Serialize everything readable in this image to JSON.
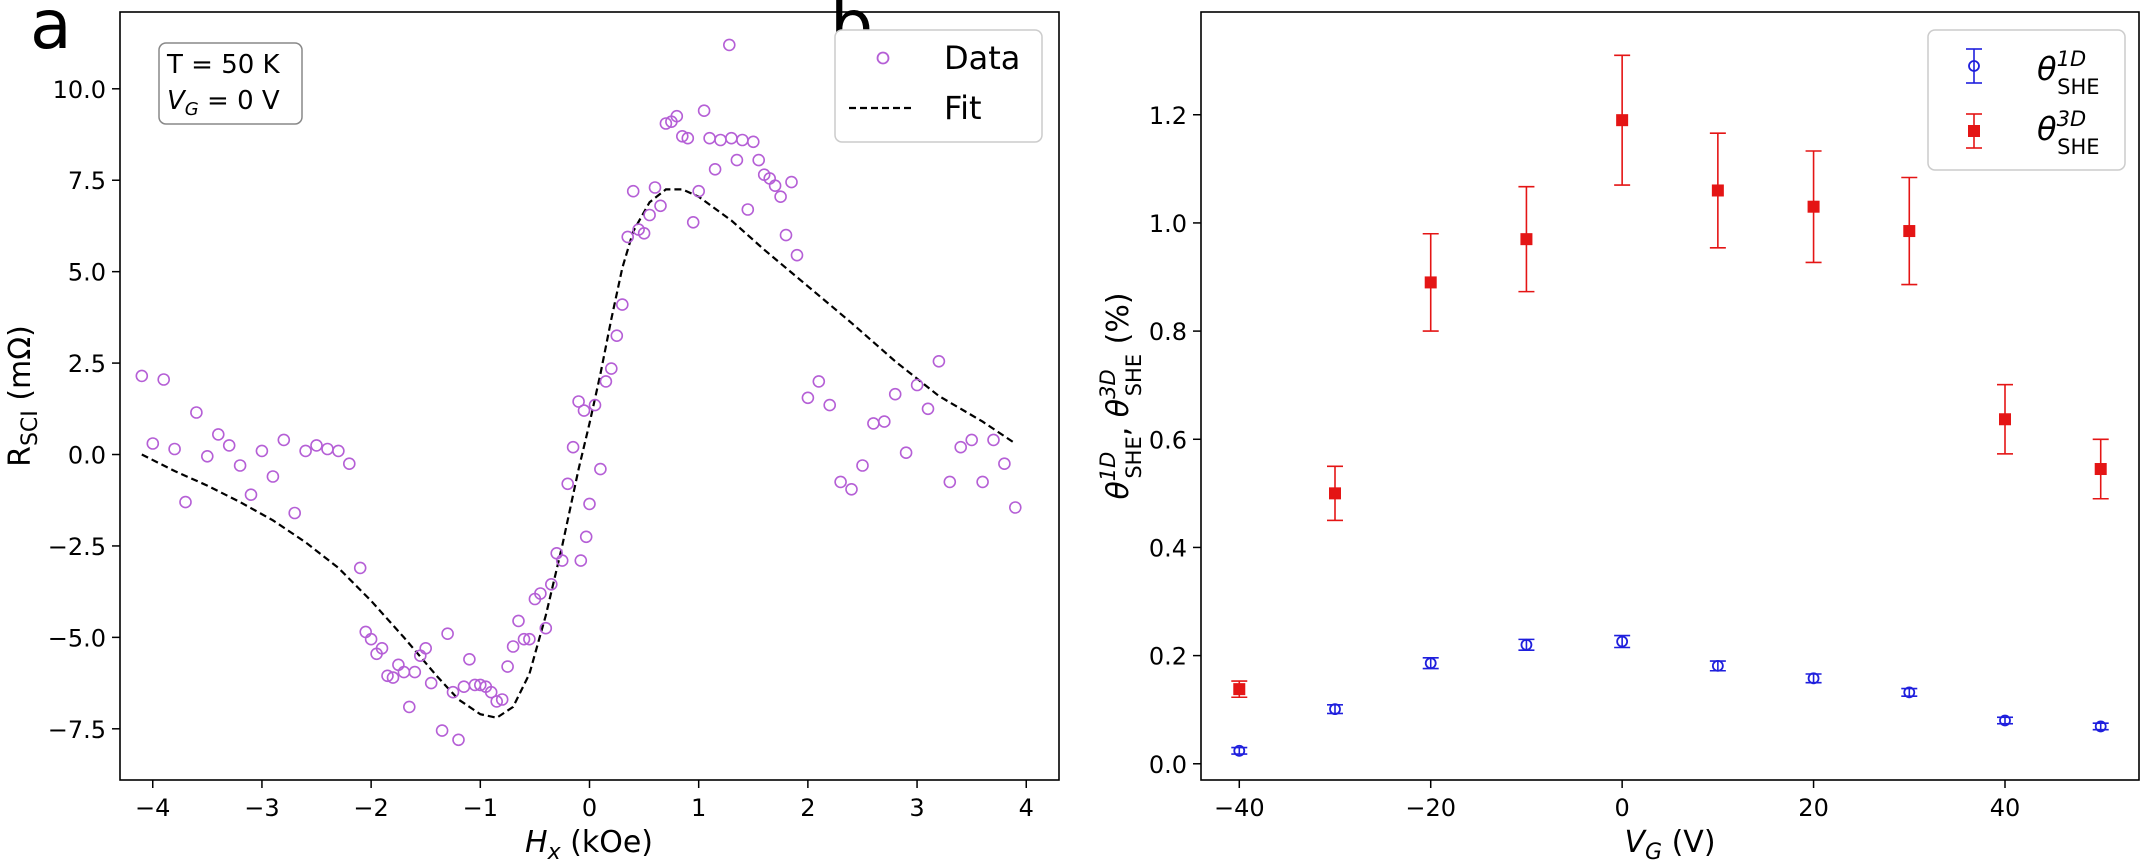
{
  "panel_a_letter": "a",
  "panel_b_letter": "b",
  "panel_a_annotation": {
    "line1": "T = 50 K",
    "line2_var": "V",
    "line2_sub": "G",
    "line2_rest": " = 0 V"
  },
  "panel_a_xlabel": {
    "var": "H",
    "sub": "x",
    "rest": " (kOe)"
  },
  "panel_a_ylabel": {
    "main": "R",
    "sub": "SCI",
    "rest": " (mΩ)"
  },
  "panel_b_xlabel": {
    "var": "V",
    "sub": "G",
    "rest": " (V)"
  },
  "panel_b_ylabel": {
    "sym1": "θ",
    "sup1": "1D",
    "sub1": "SHE",
    "sep": ", ",
    "sym2": "θ",
    "sup2": "3D",
    "sub2": "SHE",
    "rest": " (%)"
  },
  "panel_b_legend": [
    {
      "sym": "θ",
      "sup": "1D",
      "sub": "SHE"
    },
    {
      "sym": "θ",
      "sup": "3D",
      "sub": "SHE"
    }
  ],
  "colors": {
    "data_a": "#b55fd6",
    "fit": "#000000",
    "theta1d": "#1f1fdd",
    "theta3d": "#e41515",
    "frame": "#000000"
  },
  "chart_data": [
    {
      "type": "scatter",
      "xlim": [
        -4.3,
        4.3
      ],
      "ylim": [
        -8.9,
        12.1
      ],
      "xticks": [
        "−4",
        "−3",
        "−2",
        "−1",
        "0",
        "1",
        "2",
        "3",
        "4"
      ],
      "xtick_values": [
        -4,
        -3,
        -2,
        -1,
        0,
        1,
        2,
        3,
        4
      ],
      "yticks": [
        "−7.5",
        "−5.0",
        "−2.5",
        "0.0",
        "2.5",
        "5.0",
        "7.5",
        "10.0"
      ],
      "ytick_values": [
        -7.5,
        -5.0,
        -2.5,
        0.0,
        2.5,
        5.0,
        7.5,
        10.0
      ],
      "legend": {
        "placement": "top-right",
        "entries": [
          "Data",
          "Fit"
        ]
      },
      "series": [
        {
          "name": "Data",
          "style": "open-circle",
          "points": [
            [
              -4.1,
              2.15
            ],
            [
              -4.0,
              0.3
            ],
            [
              -3.9,
              2.05
            ],
            [
              -3.8,
              0.15
            ],
            [
              -3.7,
              -1.3
            ],
            [
              -3.6,
              1.15
            ],
            [
              -3.5,
              -0.05
            ],
            [
              -3.4,
              0.55
            ],
            [
              -3.3,
              0.25
            ],
            [
              -3.2,
              -0.3
            ],
            [
              -3.1,
              -1.1
            ],
            [
              -3.0,
              0.1
            ],
            [
              -2.9,
              -0.6
            ],
            [
              -2.8,
              0.4
            ],
            [
              -2.7,
              -1.6
            ],
            [
              -2.6,
              0.1
            ],
            [
              -2.5,
              0.25
            ],
            [
              -2.4,
              0.15
            ],
            [
              -2.3,
              0.1
            ],
            [
              -2.2,
              -0.25
            ],
            [
              -2.1,
              -3.1
            ],
            [
              -2.05,
              -4.85
            ],
            [
              -2.0,
              -5.05
            ],
            [
              -1.95,
              -5.45
            ],
            [
              -1.9,
              -5.3
            ],
            [
              -1.85,
              -6.05
            ],
            [
              -1.8,
              -6.1
            ],
            [
              -1.75,
              -5.75
            ],
            [
              -1.7,
              -5.95
            ],
            [
              -1.65,
              -6.9
            ],
            [
              -1.6,
              -5.95
            ],
            [
              -1.55,
              -5.5
            ],
            [
              -1.5,
              -5.3
            ],
            [
              -1.45,
              -6.25
            ],
            [
              -1.35,
              -7.55
            ],
            [
              -1.3,
              -4.9
            ],
            [
              -1.25,
              -6.5
            ],
            [
              -1.2,
              -7.8
            ],
            [
              -1.15,
              -6.35
            ],
            [
              -1.1,
              -5.6
            ],
            [
              -1.05,
              -6.3
            ],
            [
              -1.0,
              -6.3
            ],
            [
              -0.95,
              -6.35
            ],
            [
              -0.9,
              -6.5
            ],
            [
              -0.85,
              -6.75
            ],
            [
              -0.8,
              -6.7
            ],
            [
              -0.75,
              -5.8
            ],
            [
              -0.7,
              -5.25
            ],
            [
              -0.65,
              -4.55
            ],
            [
              -0.6,
              -5.05
            ],
            [
              -0.55,
              -5.05
            ],
            [
              -0.5,
              -3.95
            ],
            [
              -0.45,
              -3.8
            ],
            [
              -0.4,
              -4.75
            ],
            [
              -0.35,
              -3.55
            ],
            [
              -0.3,
              -2.7
            ],
            [
              -0.25,
              -2.9
            ],
            [
              -0.2,
              -0.8
            ],
            [
              -0.15,
              0.2
            ],
            [
              -0.1,
              1.45
            ],
            [
              -0.08,
              -2.9
            ],
            [
              -0.05,
              1.2
            ],
            [
              -0.03,
              -2.25
            ],
            [
              0.0,
              -1.35
            ],
            [
              0.05,
              1.35
            ],
            [
              0.1,
              -0.4
            ],
            [
              0.15,
              2.0
            ],
            [
              0.2,
              2.35
            ],
            [
              0.25,
              3.25
            ],
            [
              0.3,
              4.1
            ],
            [
              0.35,
              5.95
            ],
            [
              0.4,
              7.2
            ],
            [
              0.45,
              6.15
            ],
            [
              0.5,
              6.05
            ],
            [
              0.55,
              6.55
            ],
            [
              0.6,
              7.3
            ],
            [
              0.65,
              6.8
            ],
            [
              0.7,
              9.05
            ],
            [
              0.75,
              9.1
            ],
            [
              0.8,
              9.25
            ],
            [
              0.85,
              8.7
            ],
            [
              0.9,
              8.65
            ],
            [
              0.95,
              6.35
            ],
            [
              1.0,
              7.2
            ],
            [
              1.05,
              9.4
            ],
            [
              1.1,
              8.65
            ],
            [
              1.15,
              7.8
            ],
            [
              1.2,
              8.6
            ],
            [
              1.28,
              11.2
            ],
            [
              1.3,
              8.65
            ],
            [
              1.35,
              8.05
            ],
            [
              1.4,
              8.6
            ],
            [
              1.45,
              6.7
            ],
            [
              1.5,
              8.55
            ],
            [
              1.55,
              8.05
            ],
            [
              1.6,
              7.65
            ],
            [
              1.65,
              7.55
            ],
            [
              1.7,
              7.35
            ],
            [
              1.75,
              7.05
            ],
            [
              1.8,
              6.0
            ],
            [
              1.85,
              7.45
            ],
            [
              1.9,
              5.45
            ],
            [
              2.0,
              1.55
            ],
            [
              2.1,
              2.0
            ],
            [
              2.2,
              1.35
            ],
            [
              2.3,
              -0.75
            ],
            [
              2.4,
              -0.95
            ],
            [
              2.5,
              -0.3
            ],
            [
              2.6,
              0.85
            ],
            [
              2.7,
              0.9
            ],
            [
              2.8,
              1.65
            ],
            [
              2.9,
              0.05
            ],
            [
              3.0,
              1.9
            ],
            [
              3.1,
              1.25
            ],
            [
              3.2,
              2.55
            ],
            [
              3.3,
              -0.75
            ],
            [
              3.4,
              0.2
            ],
            [
              3.5,
              0.4
            ],
            [
              3.6,
              -0.75
            ],
            [
              3.7,
              0.4
            ],
            [
              3.8,
              -0.25
            ],
            [
              3.9,
              -1.45
            ]
          ]
        },
        {
          "name": "Fit",
          "style": "dashed-line",
          "points": [
            [
              -4.1,
              0.0
            ],
            [
              -3.8,
              -0.45
            ],
            [
              -3.5,
              -0.85
            ],
            [
              -3.2,
              -1.3
            ],
            [
              -2.9,
              -1.8
            ],
            [
              -2.6,
              -2.4
            ],
            [
              -2.3,
              -3.1
            ],
            [
              -2.0,
              -4.0
            ],
            [
              -1.7,
              -5.0
            ],
            [
              -1.4,
              -6.05
            ],
            [
              -1.2,
              -6.7
            ],
            [
              -1.0,
              -7.1
            ],
            [
              -0.85,
              -7.2
            ],
            [
              -0.7,
              -6.9
            ],
            [
              -0.55,
              -6.0
            ],
            [
              -0.4,
              -4.4
            ],
            [
              -0.25,
              -2.5
            ],
            [
              -0.1,
              -0.4
            ],
            [
              0.0,
              0.85
            ],
            [
              0.1,
              2.2
            ],
            [
              0.2,
              3.7
            ],
            [
              0.3,
              5.1
            ],
            [
              0.4,
              6.1
            ],
            [
              0.55,
              6.9
            ],
            [
              0.7,
              7.25
            ],
            [
              0.85,
              7.25
            ],
            [
              1.0,
              7.05
            ],
            [
              1.3,
              6.4
            ],
            [
              1.6,
              5.6
            ],
            [
              2.0,
              4.6
            ],
            [
              2.4,
              3.6
            ],
            [
              2.8,
              2.55
            ],
            [
              3.2,
              1.6
            ],
            [
              3.6,
              0.9
            ],
            [
              3.9,
              0.3
            ]
          ]
        }
      ]
    },
    {
      "type": "scatter",
      "xlim": [
        -44,
        54
      ],
      "ylim": [
        -0.03,
        1.39
      ],
      "xticks": [
        "−40",
        "−20",
        "0",
        "20",
        "40"
      ],
      "xtick_values": [
        -40,
        -20,
        0,
        20,
        40
      ],
      "yticks": [
        "0.0",
        "0.2",
        "0.4",
        "0.6",
        "0.8",
        "1.0",
        "1.2"
      ],
      "ytick_values": [
        0.0,
        0.2,
        0.4,
        0.6,
        0.8,
        1.0,
        1.2
      ],
      "legend": {
        "placement": "top-right"
      },
      "series": [
        {
          "style": "open-circle-errorbar",
          "x": [
            -40,
            -30,
            -20,
            -10,
            0,
            10,
            20,
            30,
            40,
            50
          ],
          "y": [
            0.024,
            0.101,
            0.186,
            0.22,
            0.226,
            0.181,
            0.158,
            0.132,
            0.08,
            0.069
          ],
          "err": [
            0.006,
            0.008,
            0.01,
            0.01,
            0.011,
            0.009,
            0.008,
            0.007,
            0.006,
            0.006
          ]
        },
        {
          "style": "filled-square-errorbar",
          "x": [
            -40,
            -30,
            -20,
            -10,
            0,
            10,
            20,
            30,
            40,
            50
          ],
          "y": [
            0.138,
            0.5,
            0.89,
            0.97,
            1.19,
            1.06,
            1.03,
            0.985,
            0.637,
            0.545
          ],
          "err": [
            0.015,
            0.05,
            0.09,
            0.097,
            0.12,
            0.106,
            0.103,
            0.099,
            0.064,
            0.055
          ]
        }
      ]
    }
  ]
}
